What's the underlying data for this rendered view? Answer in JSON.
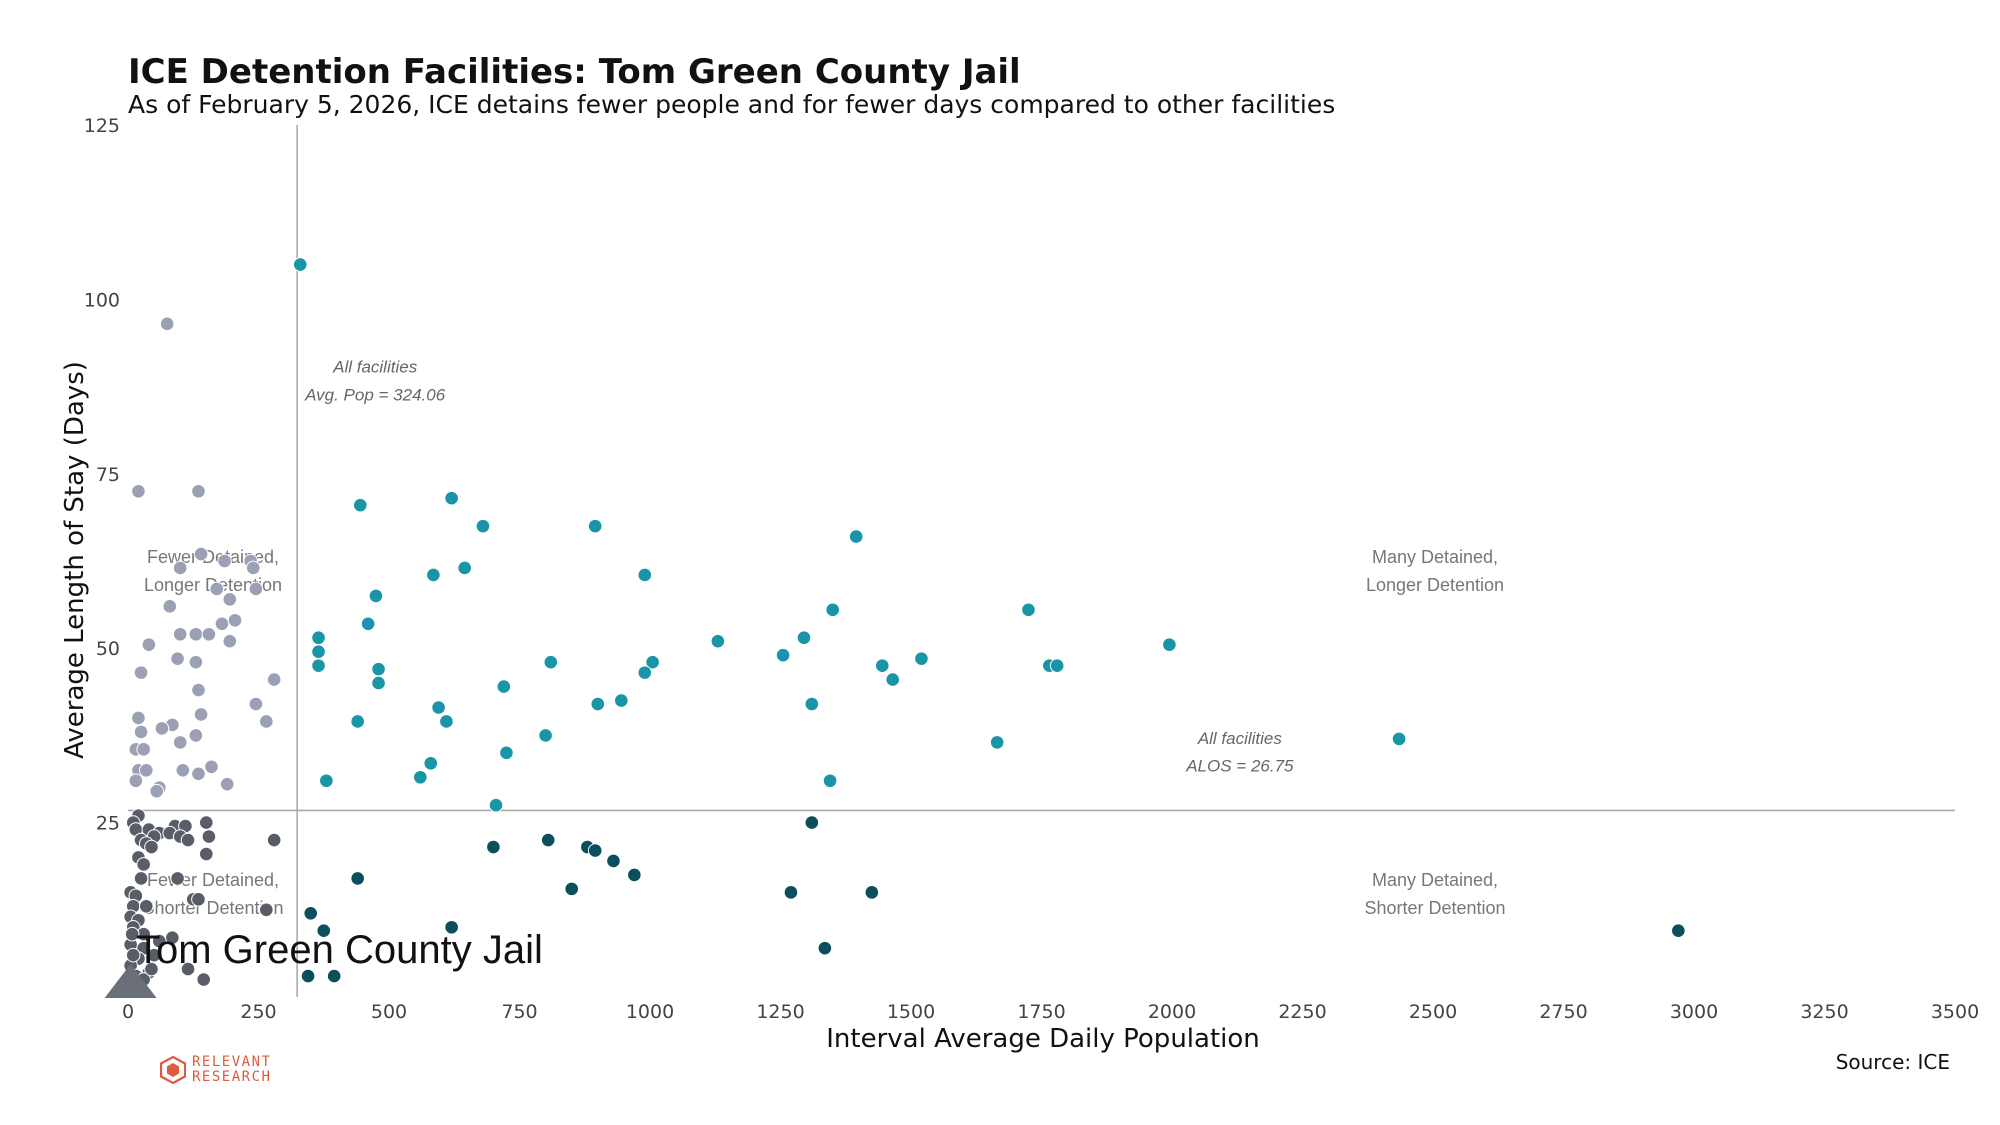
{
  "header": {
    "title": "ICE Detention Facilities: Tom Green County Jail",
    "subtitle": "As of February 5, 2026, ICE detains fewer people and for fewer days compared to other facilities"
  },
  "footer": {
    "source": "Source: ICE",
    "logo_line1": "RELEVANT",
    "logo_line2": "RESEARCH"
  },
  "colors": {
    "upper_right": "#1995a8",
    "lower_right": "#0b4f5c",
    "upper_left": "#9ba0b4",
    "lower_left": "#585d68",
    "reference_line": "#aaaaaa",
    "highlight_marker": "#6b6f78",
    "logo": "#e05a3c"
  },
  "chart_data": {
    "type": "scatter",
    "title": "ICE Detention Facilities: Tom Green County Jail",
    "subtitle": "As of February 5, 2026, ICE detains fewer people and for fewer days compared to other facilities",
    "xlabel": "Interval Average Daily Population",
    "ylabel": "Average Length of Stay (Days)",
    "xlim": [
      0,
      3500
    ],
    "ylim": [
      0,
      125
    ],
    "xticks": [
      "0",
      "250",
      "500",
      "750",
      "1000",
      "1250",
      "1500",
      "1750",
      "2000",
      "2250",
      "2500",
      "2750",
      "3000",
      "3250",
      "3500"
    ],
    "yticks": [
      "25",
      "50",
      "75",
      "100",
      "125"
    ],
    "grid": false,
    "reference_lines": {
      "avg_pop": 324.06,
      "alos": 26.75,
      "avg_pop_label": [
        "All facilities",
        "Avg. Pop = 324.06"
      ],
      "alos_label": [
        "All facilities",
        "ALOS = 26.75"
      ]
    },
    "quadrant_labels": {
      "upper_left": [
        "Fewer Detained,",
        "Longer Detention"
      ],
      "upper_right": [
        "Many Detained,",
        "Longer Detention"
      ],
      "lower_left": [
        "Fewer Detained,",
        "Shorter Detention"
      ],
      "lower_right": [
        "Many Detained,",
        "Shorter Detention"
      ]
    },
    "highlight": {
      "name": "Tom Green County Jail",
      "x": 5,
      "y": 1
    },
    "points": [
      [
        330,
        105
      ],
      [
        445,
        70.5
      ],
      [
        620,
        71.5
      ],
      [
        680,
        67.5
      ],
      [
        895,
        67.5
      ],
      [
        1395,
        66
      ],
      [
        645,
        61.5
      ],
      [
        585,
        60.5
      ],
      [
        990,
        60.5
      ],
      [
        475,
        57.5
      ],
      [
        460,
        53.5
      ],
      [
        1350,
        55.5
      ],
      [
        1725,
        55.5
      ],
      [
        365,
        51.5
      ],
      [
        1130,
        51
      ],
      [
        1295,
        51.5
      ],
      [
        1995,
        50.5
      ],
      [
        365,
        49.5
      ],
      [
        1255,
        49
      ],
      [
        1520,
        48.5
      ],
      [
        365,
        47.5
      ],
      [
        810,
        48
      ],
      [
        1005,
        48
      ],
      [
        1445,
        47.5
      ],
      [
        1765,
        47.5
      ],
      [
        1780,
        47.5
      ],
      [
        480,
        47
      ],
      [
        990,
        46.5
      ],
      [
        1465,
        45.5
      ],
      [
        480,
        45
      ],
      [
        720,
        44.5
      ],
      [
        595,
        41.5
      ],
      [
        945,
        42.5
      ],
      [
        900,
        42
      ],
      [
        1310,
        42
      ],
      [
        440,
        39.5
      ],
      [
        610,
        39.5
      ],
      [
        800,
        37.5
      ],
      [
        2435,
        37
      ],
      [
        1665,
        36.5
      ],
      [
        725,
        35
      ],
      [
        580,
        33.5
      ],
      [
        560,
        31.5
      ],
      [
        380,
        31
      ],
      [
        1345,
        31
      ],
      [
        705,
        27.5
      ],
      [
        1310,
        25
      ],
      [
        805,
        22.5
      ],
      [
        700,
        21.5
      ],
      [
        880,
        21.5
      ],
      [
        895,
        21
      ],
      [
        930,
        19.5
      ],
      [
        970,
        17.5
      ],
      [
        440,
        17
      ],
      [
        850,
        15.5
      ],
      [
        1270,
        15
      ],
      [
        1425,
        15
      ],
      [
        2970,
        9.5
      ],
      [
        350,
        12
      ],
      [
        375,
        9.5
      ],
      [
        620,
        10
      ],
      [
        1335,
        7
      ],
      [
        345,
        3
      ],
      [
        395,
        3
      ],
      [
        75,
        96.5
      ],
      [
        20,
        72.5
      ],
      [
        135,
        72.5
      ],
      [
        140,
        63.5
      ],
      [
        185,
        62.5
      ],
      [
        235,
        62.5
      ],
      [
        240,
        61.5
      ],
      [
        100,
        61.5
      ],
      [
        170,
        58.5
      ],
      [
        245,
        58.5
      ],
      [
        195,
        57
      ],
      [
        80,
        56
      ],
      [
        205,
        54
      ],
      [
        180,
        53.5
      ],
      [
        100,
        52
      ],
      [
        130,
        52
      ],
      [
        155,
        52
      ],
      [
        195,
        51
      ],
      [
        40,
        50.5
      ],
      [
        95,
        48.5
      ],
      [
        130,
        48
      ],
      [
        25,
        46.5
      ],
      [
        280,
        45.5
      ],
      [
        135,
        44
      ],
      [
        245,
        42
      ],
      [
        140,
        40.5
      ],
      [
        20,
        40
      ],
      [
        265,
        39.5
      ],
      [
        85,
        39
      ],
      [
        65,
        38.5
      ],
      [
        25,
        38
      ],
      [
        130,
        37.5
      ],
      [
        100,
        36.5
      ],
      [
        15,
        35.5
      ],
      [
        30,
        35.5
      ],
      [
        160,
        33
      ],
      [
        20,
        32.5
      ],
      [
        35,
        32.5
      ],
      [
        105,
        32.5
      ],
      [
        135,
        32
      ],
      [
        15,
        31
      ],
      [
        190,
        30.5
      ],
      [
        60,
        30
      ],
      [
        55,
        29.5
      ],
      [
        20,
        26
      ],
      [
        10,
        25
      ],
      [
        90,
        24.5
      ],
      [
        110,
        24.5
      ],
      [
        150,
        25
      ],
      [
        15,
        24
      ],
      [
        40,
        24
      ],
      [
        60,
        23.5
      ],
      [
        80,
        23.5
      ],
      [
        50,
        23
      ],
      [
        25,
        22.5
      ],
      [
        100,
        23
      ],
      [
        115,
        22.5
      ],
      [
        155,
        23
      ],
      [
        280,
        22.5
      ],
      [
        35,
        22
      ],
      [
        45,
        21.5
      ],
      [
        150,
        20.5
      ],
      [
        20,
        20
      ],
      [
        30,
        19
      ],
      [
        25,
        17
      ],
      [
        95,
        17
      ],
      [
        5,
        15
      ],
      [
        15,
        14.5
      ],
      [
        125,
        14
      ],
      [
        135,
        14
      ],
      [
        10,
        13
      ],
      [
        265,
        12.5
      ],
      [
        5,
        11.5
      ],
      [
        20,
        11
      ],
      [
        10,
        10
      ],
      [
        30,
        9
      ],
      [
        85,
        8.5
      ],
      [
        5,
        7.5
      ],
      [
        30,
        7
      ],
      [
        50,
        6
      ],
      [
        20,
        5.5
      ],
      [
        5,
        4.5
      ],
      [
        115,
        4
      ],
      [
        40,
        3.5
      ],
      [
        15,
        3
      ],
      [
        30,
        2.5
      ],
      [
        145,
        2.5
      ],
      [
        5,
        2
      ],
      [
        20,
        1.5
      ],
      [
        45,
        4
      ],
      [
        10,
        6
      ],
      [
        60,
        8
      ],
      [
        35,
        13
      ],
      [
        8,
        9
      ]
    ]
  }
}
